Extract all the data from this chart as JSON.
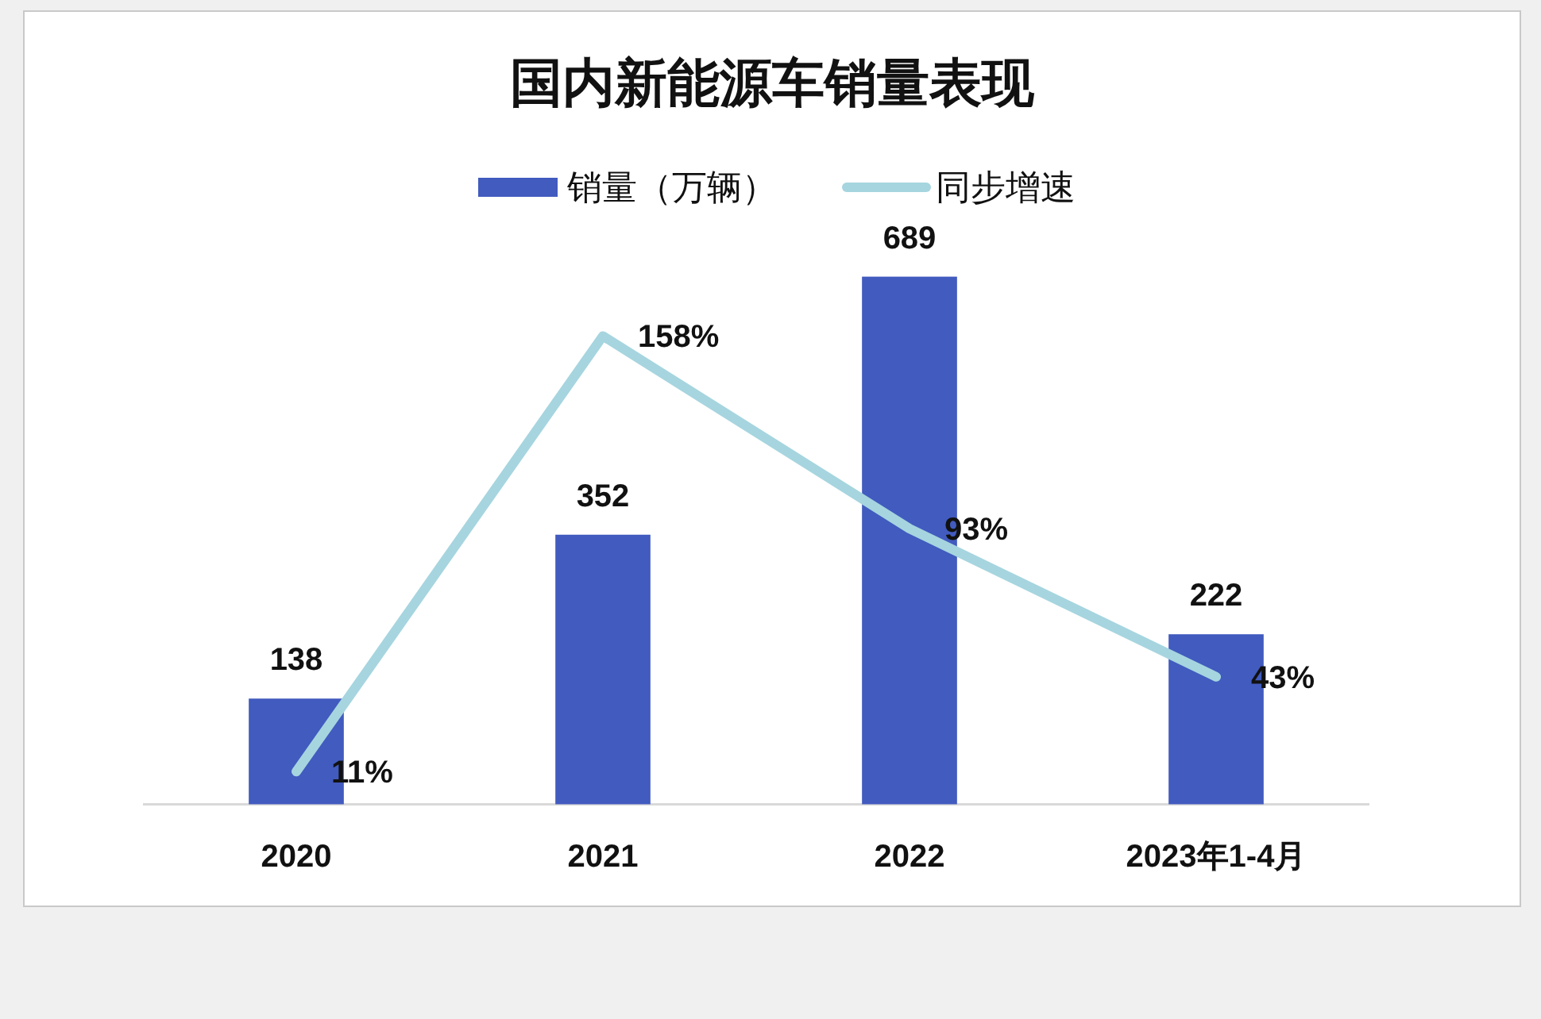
{
  "chart_data": {
    "type": "bar",
    "title": "国内新能源车销量表现",
    "categories": [
      "2020",
      "2021",
      "2022",
      "2023年1-4月"
    ],
    "series": [
      {
        "name": "销量（万辆）",
        "color": "#415bbf",
        "values": [
          138,
          352,
          689,
          222
        ],
        "value_labels": [
          "138",
          "352",
          "689",
          "222"
        ]
      },
      {
        "name": "同步增速",
        "type": "line",
        "axis": "y2",
        "color": "#a6d5df",
        "values": [
          11,
          158,
          93,
          43
        ],
        "value_labels": [
          "11%",
          "158%",
          "93%",
          "43%"
        ]
      }
    ],
    "legend": "top",
    "tick_labels": "x",
    "line_style": "solid",
    "marker": "none"
  }
}
